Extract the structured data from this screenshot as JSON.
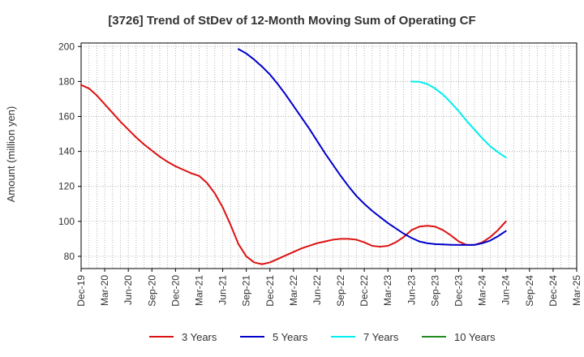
{
  "chart_data": {
    "type": "line",
    "title": "[3726]  Trend of StDev of 12-Month Moving Sum of Operating CF",
    "xlabel": "",
    "ylabel": "Amount (million yen)",
    "x_ticks": [
      "Dec-19",
      "Mar-20",
      "Jun-20",
      "Sep-20",
      "Dec-20",
      "Mar-21",
      "Jun-21",
      "Sep-21",
      "Dec-21",
      "Mar-22",
      "Jun-22",
      "Sep-22",
      "Dec-22",
      "Mar-23",
      "Jun-23",
      "Sep-23",
      "Dec-23",
      "Mar-24",
      "Jun-24",
      "Sep-24",
      "Dec-24",
      "Mar-25"
    ],
    "y_ticks": [
      80,
      100,
      120,
      140,
      160,
      180,
      200
    ],
    "ylim": [
      73,
      202
    ],
    "grid": true,
    "legend_position": "bottom",
    "series": [
      {
        "name": "3 Years",
        "color": "#dd1111",
        "points": [
          [
            "Dec-19",
            178
          ],
          [
            "Jan-20",
            176
          ],
          [
            "Feb-20",
            172
          ],
          [
            "Mar-20",
            167
          ],
          [
            "Apr-20",
            162
          ],
          [
            "May-20",
            157
          ],
          [
            "Jun-20",
            152.5
          ],
          [
            "Jul-20",
            148
          ],
          [
            "Aug-20",
            144
          ],
          [
            "Sep-20",
            140.5
          ],
          [
            "Oct-20",
            137
          ],
          [
            "Nov-20",
            134
          ],
          [
            "Dec-20",
            131.5
          ],
          [
            "Jan-21",
            129.5
          ],
          [
            "Feb-21",
            127.5
          ],
          [
            "Mar-21",
            126
          ],
          [
            "Apr-21",
            122
          ],
          [
            "May-21",
            116
          ],
          [
            "Jun-21",
            108
          ],
          [
            "Jul-21",
            98
          ],
          [
            "Aug-21",
            87
          ],
          [
            "Sep-21",
            80
          ],
          [
            "Oct-21",
            76.5
          ],
          [
            "Nov-21",
            75.5
          ],
          [
            "Dec-21",
            76.5
          ],
          [
            "Jan-22",
            78.5
          ],
          [
            "Feb-22",
            80.5
          ],
          [
            "Mar-22",
            82.5
          ],
          [
            "Apr-22",
            84.5
          ],
          [
            "May-22",
            86
          ],
          [
            "Jun-22",
            87.5
          ],
          [
            "Jul-22",
            88.5
          ],
          [
            "Aug-22",
            89.5
          ],
          [
            "Sep-22",
            90
          ],
          [
            "Oct-22",
            90
          ],
          [
            "Nov-22",
            89.5
          ],
          [
            "Dec-22",
            88
          ],
          [
            "Jan-23",
            86
          ],
          [
            "Feb-23",
            85.5
          ],
          [
            "Mar-23",
            86
          ],
          [
            "Apr-23",
            88
          ],
          [
            "May-23",
            91
          ],
          [
            "Jun-23",
            95
          ],
          [
            "Jul-23",
            97
          ],
          [
            "Aug-23",
            97.5
          ],
          [
            "Sep-23",
            97
          ],
          [
            "Oct-23",
            95
          ],
          [
            "Nov-23",
            92
          ],
          [
            "Dec-23",
            88.5
          ],
          [
            "Jan-24",
            86.5
          ],
          [
            "Feb-24",
            86.5
          ],
          [
            "Mar-24",
            88
          ],
          [
            "Apr-24",
            91
          ],
          [
            "May-24",
            95
          ],
          [
            "Jun-24",
            100
          ]
        ]
      },
      {
        "name": "5 Years",
        "color": "#0000cc",
        "points": [
          [
            "Aug-21",
            198.5
          ],
          [
            "Sep-21",
            196
          ],
          [
            "Oct-21",
            192.5
          ],
          [
            "Nov-21",
            188.5
          ],
          [
            "Dec-21",
            184
          ],
          [
            "Jan-22",
            178.5
          ],
          [
            "Feb-22",
            172.5
          ],
          [
            "Mar-22",
            166
          ],
          [
            "Apr-22",
            159.5
          ],
          [
            "May-22",
            153
          ],
          [
            "Jun-22",
            146
          ],
          [
            "Jul-22",
            139
          ],
          [
            "Aug-22",
            132.5
          ],
          [
            "Sep-22",
            126
          ],
          [
            "Oct-22",
            120
          ],
          [
            "Nov-22",
            114.5
          ],
          [
            "Dec-22",
            110
          ],
          [
            "Jan-23",
            106
          ],
          [
            "Feb-23",
            102.5
          ],
          [
            "Mar-23",
            99
          ],
          [
            "Apr-23",
            96
          ],
          [
            "May-23",
            93
          ],
          [
            "Jun-23",
            90.5
          ],
          [
            "Jul-23",
            88.5
          ],
          [
            "Aug-23",
            87.5
          ],
          [
            "Sep-23",
            87
          ],
          [
            "Oct-23",
            86.8
          ],
          [
            "Nov-23",
            86.6
          ],
          [
            "Dec-23",
            86.5
          ],
          [
            "Jan-24",
            86.5
          ],
          [
            "Feb-24",
            86.5
          ],
          [
            "Mar-24",
            87.5
          ],
          [
            "Apr-24",
            89
          ],
          [
            "May-24",
            91.5
          ],
          [
            "Jun-24",
            94.5
          ]
        ]
      },
      {
        "name": "7 Years",
        "color": "#00eeee",
        "points": [
          [
            "Jun-23",
            180
          ],
          [
            "Jul-23",
            179.8
          ],
          [
            "Aug-23",
            178.5
          ],
          [
            "Sep-23",
            176
          ],
          [
            "Oct-23",
            172.5
          ],
          [
            "Nov-23",
            168
          ],
          [
            "Dec-23",
            163
          ],
          [
            "Jan-24",
            157.5
          ],
          [
            "Feb-24",
            152.5
          ],
          [
            "Mar-24",
            147.5
          ],
          [
            "Apr-24",
            143
          ],
          [
            "May-24",
            139.5
          ],
          [
            "Jun-24",
            136.5
          ]
        ]
      },
      {
        "name": "10 Years",
        "color": "#228b22",
        "points": []
      }
    ]
  }
}
